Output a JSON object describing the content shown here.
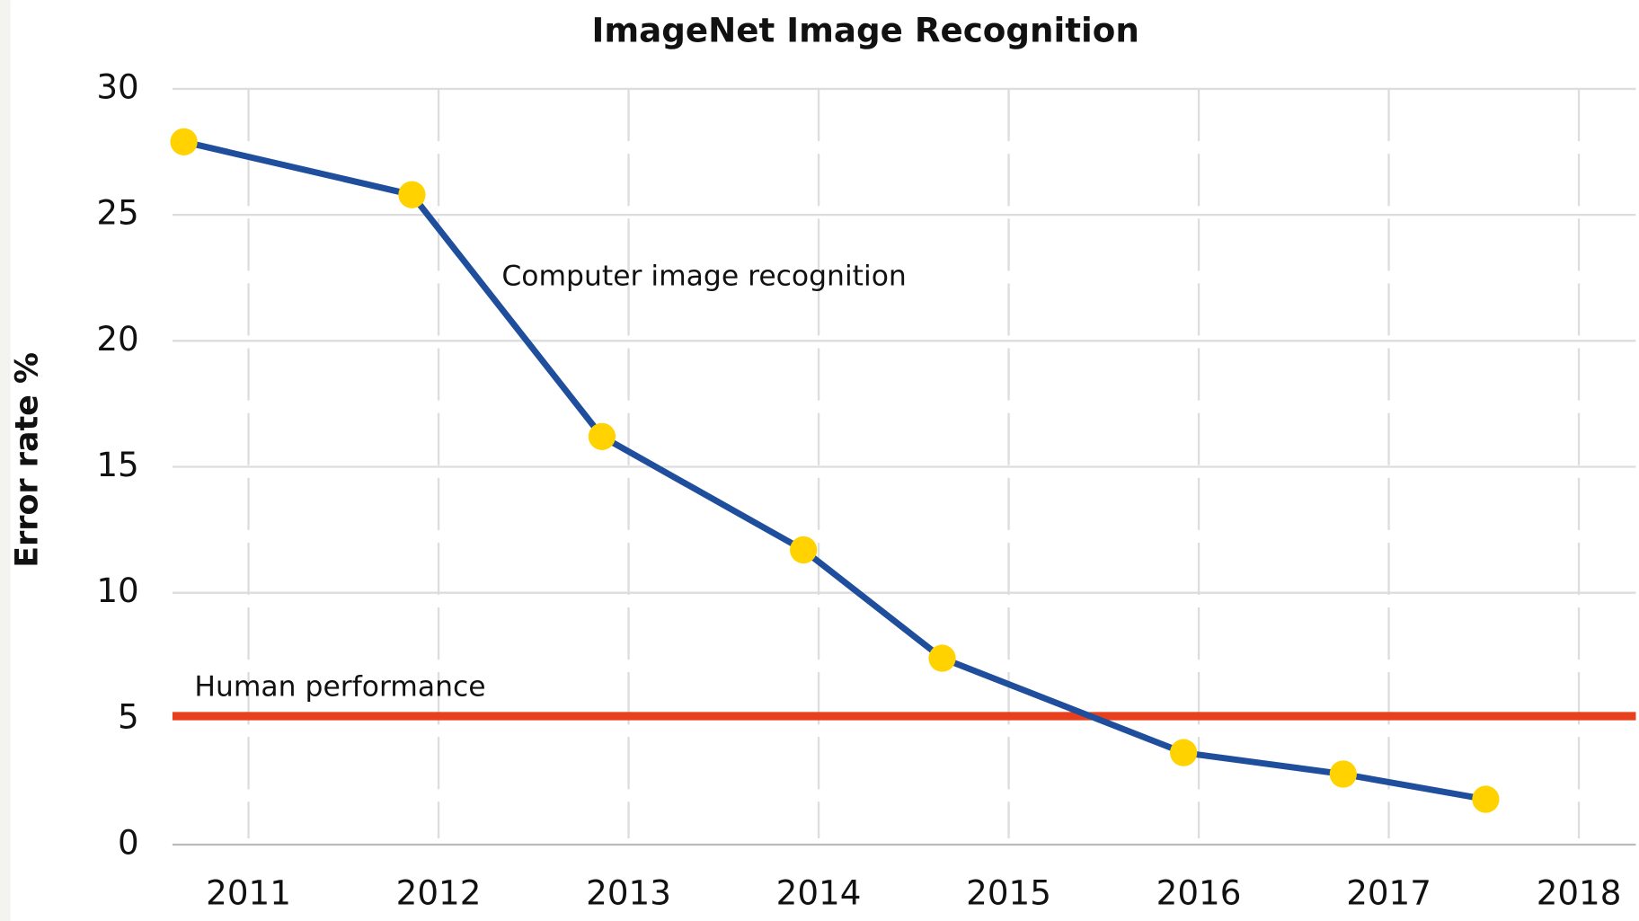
{
  "chart_data": {
    "type": "line",
    "title": "ImageNet Image Recognition",
    "y_label": "Error rate %",
    "series": [
      {
        "name": "Computer image recognition",
        "color": "#1f4e9c",
        "marker_color": "#ffd200",
        "x": [
          2010.66,
          2011.86,
          2012.86,
          2013.92,
          2014.65,
          2015.92,
          2016.76,
          2017.51
        ],
        "values": [
          27.9,
          25.8,
          16.2,
          11.7,
          7.4,
          3.65,
          2.8,
          1.8
        ]
      }
    ],
    "reference_lines": [
      {
        "label": "Human performance",
        "value": 5.1,
        "color": "#e8401c"
      }
    ],
    "xlim": [
      2010.6,
      2018.3
    ],
    "xticks": [
      2011,
      2012,
      2013,
      2014,
      2015,
      2016,
      2017,
      2018
    ],
    "ylim": [
      0,
      30
    ],
    "yticks": [
      0,
      5,
      10,
      15,
      20,
      25,
      30
    ],
    "grid": true
  }
}
